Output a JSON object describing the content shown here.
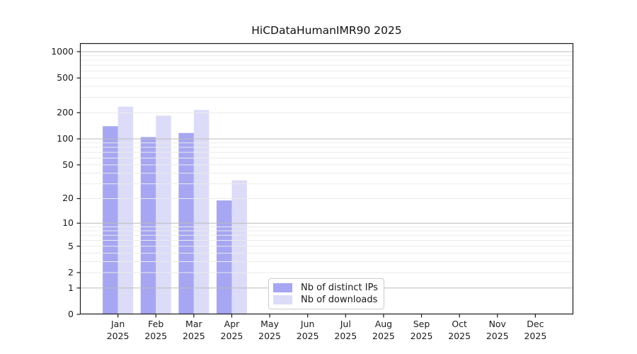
{
  "chart_data": {
    "type": "bar",
    "title": "HiCDataHumanIMR90 2025",
    "x_tick_months": [
      "Jan",
      "Feb",
      "Mar",
      "Apr",
      "May",
      "Jun",
      "Jul",
      "Aug",
      "Sep",
      "Oct",
      "Nov",
      "Dec"
    ],
    "x_tick_year": "2025",
    "series": [
      {
        "name": "Nb of distinct IPs",
        "color": "#a6a6f2",
        "values": [
          140,
          105,
          117,
          19,
          0,
          0,
          0,
          0,
          0,
          0,
          0,
          0
        ]
      },
      {
        "name": "Nb of downloads",
        "color": "#dcdcf8",
        "values": [
          235,
          185,
          215,
          33,
          0,
          0,
          0,
          0,
          0,
          0,
          0,
          0
        ]
      }
    ],
    "yscale": "log1p",
    "ylim": [
      0,
      1250
    ],
    "yticks": [
      0,
      1,
      2,
      5,
      10,
      20,
      50,
      100,
      200,
      500,
      1000
    ],
    "major_gridlines": [
      1,
      10,
      100,
      1000
    ],
    "minor_gridlines": [
      2,
      3,
      4,
      5,
      6,
      7,
      8,
      9,
      20,
      30,
      40,
      50,
      60,
      70,
      80,
      90,
      200,
      300,
      400,
      500,
      600,
      700,
      800,
      900
    ],
    "grid": "horizontal",
    "legend_position": "lower-center-inside",
    "colors": {
      "axis": "#1a1a1a",
      "grid_major": "#bcbcbc",
      "grid_minor": "#ebebeb",
      "background": "#ffffff"
    }
  }
}
